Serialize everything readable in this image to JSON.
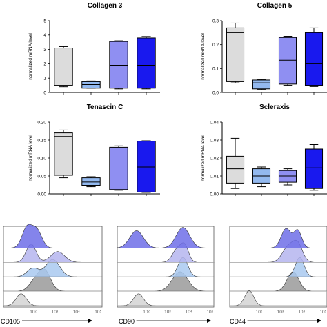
{
  "colors": {
    "group1": "#dcdcdc",
    "group2": "#93b9ef",
    "group3": "#8f8ff2",
    "group4": "#1919ee",
    "axis": "#000000"
  },
  "chart_data": [
    {
      "type": "box",
      "title": "Collagen 3",
      "ylabel": "normalized mRNA level",
      "ylim": [
        0,
        5
      ],
      "yticks": [
        "0",
        "1",
        "2",
        "3",
        "4",
        "5"
      ],
      "groups": [
        {
          "min": 0.4,
          "q1": 0.5,
          "median": 3.1,
          "q3": 3.1,
          "max": 3.2
        },
        {
          "min": 0.3,
          "q1": 0.3,
          "median": 0.55,
          "q3": 0.75,
          "max": 0.8
        },
        {
          "min": 0.25,
          "q1": 0.3,
          "median": 1.9,
          "q3": 3.55,
          "max": 3.6
        },
        {
          "min": 0.25,
          "q1": 0.3,
          "median": 1.9,
          "q3": 3.8,
          "max": 3.9
        }
      ]
    },
    {
      "type": "box",
      "title": "Collagen 5",
      "ylabel": "normalized mRNA level",
      "ylim": [
        0,
        0.3
      ],
      "yticks": [
        "0.0",
        "0.1",
        "0.2",
        "0.3"
      ],
      "groups": [
        {
          "min": 0.04,
          "q1": 0.045,
          "median": 0.25,
          "q3": 0.27,
          "max": 0.29
        },
        {
          "min": 0.012,
          "q1": 0.015,
          "median": 0.04,
          "q3": 0.052,
          "max": 0.055
        },
        {
          "min": 0.03,
          "q1": 0.035,
          "median": 0.135,
          "q3": 0.23,
          "max": 0.235
        },
        {
          "min": 0.025,
          "q1": 0.03,
          "median": 0.12,
          "q3": 0.25,
          "max": 0.27
        }
      ]
    },
    {
      "type": "box",
      "title": "Tenascin C",
      "ylabel": "normalized mRNA level",
      "ylim": [
        0,
        0.2
      ],
      "yticks": [
        "0.00",
        "0.05",
        "0.10",
        "0.15",
        "0.20"
      ],
      "groups": [
        {
          "min": 0.045,
          "q1": 0.052,
          "median": 0.16,
          "q3": 0.17,
          "max": 0.178
        },
        {
          "min": 0.02,
          "q1": 0.024,
          "median": 0.033,
          "q3": 0.045,
          "max": 0.048
        },
        {
          "min": 0.01,
          "q1": 0.012,
          "median": 0.072,
          "q3": 0.13,
          "max": 0.134
        },
        {
          "min": 0.004,
          "q1": 0.005,
          "median": 0.075,
          "q3": 0.147,
          "max": 0.148
        }
      ]
    },
    {
      "type": "box",
      "title": "Scleraxis",
      "ylabel": "normalized mRNA level",
      "ylim": [
        0,
        0.04
      ],
      "yticks": [
        "0.00",
        "0.01",
        "0.02",
        "0.03",
        "0.04"
      ],
      "groups": [
        {
          "min": 0.003,
          "q1": 0.006,
          "median": 0.014,
          "q3": 0.021,
          "max": 0.031
        },
        {
          "min": 0.004,
          "q1": 0.006,
          "median": 0.01,
          "q3": 0.014,
          "max": 0.015
        },
        {
          "min": 0.005,
          "q1": 0.0065,
          "median": 0.01,
          "q3": 0.013,
          "max": 0.014
        },
        {
          "min": 0.002,
          "q1": 0.003,
          "median": 0.0145,
          "q3": 0.025,
          "max": 0.0275
        }
      ]
    },
    {
      "type": "histogram",
      "xlabel": "CD105",
      "xticks": [
        "10²",
        "10³",
        "10⁴",
        "10⁵"
      ]
    },
    {
      "type": "histogram",
      "xlabel": "CD90",
      "xticks": [
        "10²",
        "10³",
        "10⁴",
        "10⁵"
      ]
    },
    {
      "type": "histogram",
      "xlabel": "CD44",
      "xticks": [
        "10²",
        "10³",
        "10⁴",
        "10⁵"
      ]
    }
  ]
}
